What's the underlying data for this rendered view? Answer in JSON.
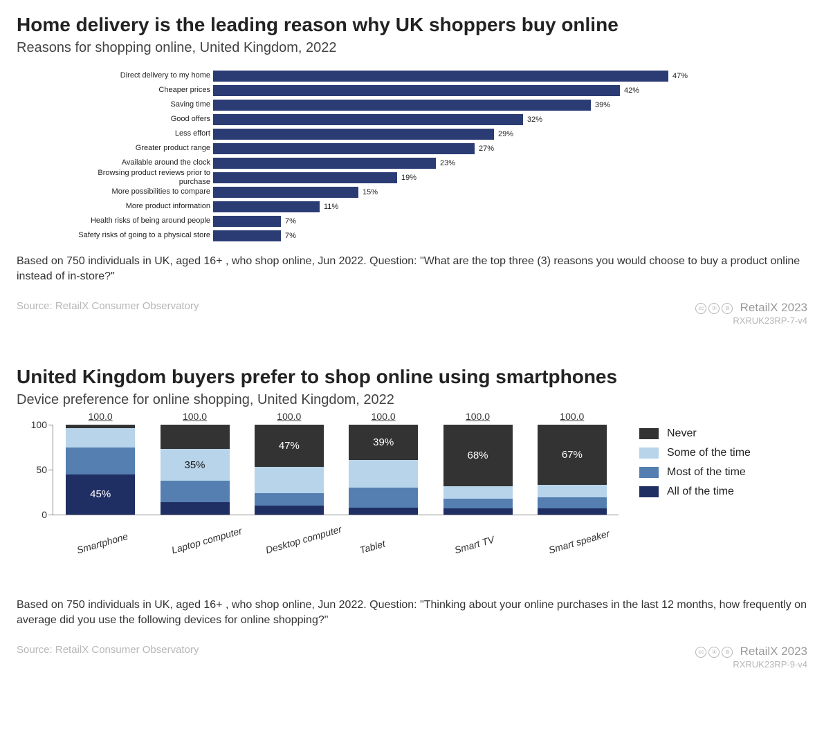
{
  "colors": {
    "bar": "#2b3c74",
    "text": "#222222",
    "muted": "#b7b7b7",
    "seg_all": "#1f2e63",
    "seg_most": "#547fb0",
    "seg_some": "#b7d4ea",
    "seg_never": "#333333"
  },
  "chart1": {
    "title": "Home delivery is the leading reason why UK shoppers buy online",
    "subtitle": "Reasons for shopping online, United Kingdom, 2022",
    "type": "horizontal-bar",
    "max": 50,
    "bar_color": "#2b3c74",
    "label_fontsize": 11,
    "value_fontsize": 11,
    "rows": [
      {
        "label": "Direct delivery to my home",
        "value": 47
      },
      {
        "label": "Cheaper prices",
        "value": 42
      },
      {
        "label": "Saving time",
        "value": 39
      },
      {
        "label": "Good offers",
        "value": 32
      },
      {
        "label": "Less effort",
        "value": 29
      },
      {
        "label": "Greater product range",
        "value": 27
      },
      {
        "label": "Available around the clock",
        "value": 23
      },
      {
        "label": "Browsing product reviews prior to purchase",
        "value": 19
      },
      {
        "label": "More possibilities to compare",
        "value": 15
      },
      {
        "label": "More product information",
        "value": 11
      },
      {
        "label": "Health risks of being around people",
        "value": 7
      },
      {
        "label": "Safety risks of going to a physical store",
        "value": 7
      }
    ],
    "note": "Based on 750 individuals in UK, aged 16+ , who shop online, Jun 2022. Question: \"What are the top three (3) reasons you would choose to buy a product online instead of in-store?\"",
    "source": "Source: RetailX Consumer Observatory",
    "brand": "RetailX 2023",
    "refcode": "RXRUK23RP-7-v4"
  },
  "chart2": {
    "title": "United Kingdom buyers prefer to shop online using smartphones",
    "subtitle": "Device preference for online shopping, United Kingdom, 2022",
    "type": "stacked-bar",
    "ymax": 100,
    "yticks": [
      0,
      50,
      100
    ],
    "total_label": "100.0",
    "legend": [
      {
        "key": "never",
        "label": "Never",
        "color": "#333333"
      },
      {
        "key": "some",
        "label": "Some of the time",
        "color": "#b7d4ea"
      },
      {
        "key": "most",
        "label": "Most of the time",
        "color": "#547fb0"
      },
      {
        "key": "all",
        "label": "All of the time",
        "color": "#1f2e63"
      }
    ],
    "categories": [
      {
        "label": "Smartphone",
        "all": 45,
        "most": 30,
        "some": 21,
        "never": 4,
        "show": {
          "seg": "all",
          "text": "45%"
        }
      },
      {
        "label": "Laptop computer",
        "all": 14,
        "most": 24,
        "some": 35,
        "never": 27,
        "show": {
          "seg": "some",
          "text": "35%"
        }
      },
      {
        "label": "Desktop computer",
        "all": 10,
        "most": 14,
        "some": 29,
        "never": 47,
        "show": {
          "seg": "never",
          "text": "47%"
        }
      },
      {
        "label": "Tablet",
        "all": 8,
        "most": 22,
        "some": 31,
        "never": 39,
        "show": {
          "seg": "never",
          "text": "39%"
        }
      },
      {
        "label": "Smart TV",
        "all": 7,
        "most": 11,
        "some": 14,
        "never": 68,
        "show": {
          "seg": "never",
          "text": "68%"
        }
      },
      {
        "label": "Smart speaker",
        "all": 7,
        "most": 12,
        "some": 14,
        "never": 67,
        "show": {
          "seg": "never",
          "text": "67%"
        }
      }
    ],
    "note": "Based on 750 individuals in UK, aged 16+ , who shop online, Jun 2022. Question: \"Thinking about your online purchases in the last 12 months, how frequently on average did you use the following devices for online shopping?\"",
    "source": "Source: RetailX Consumer Observatory",
    "brand": "RetailX 2023",
    "refcode": "RXRUK23RP-9-v4"
  },
  "cc_glyphs": [
    "cc",
    "①",
    "㊜"
  ],
  "cc_title": "Creative Commons"
}
